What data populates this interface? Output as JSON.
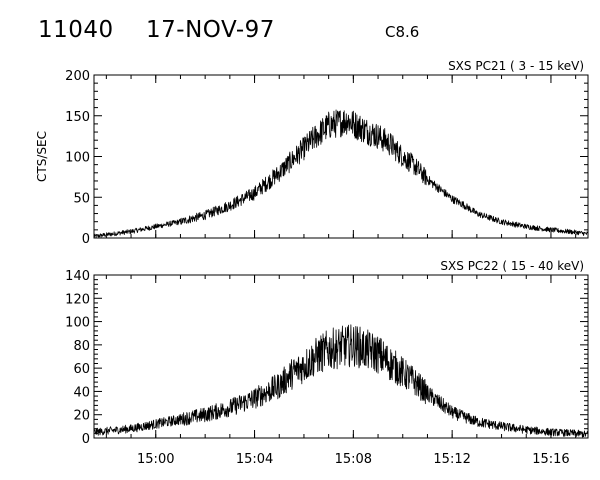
{
  "header": {
    "region_id": "11040",
    "date": "17-NOV-97",
    "flare_class": "C8.6"
  },
  "chart_data": [
    {
      "type": "line",
      "title": "SXS PC21  (  3 - 15 keV)",
      "ylabel": "CTS/SEC",
      "xlabel": "",
      "x_units": "UT",
      "xlim": [
        "14:57:30",
        "15:17:30"
      ],
      "ylim": [
        0,
        200
      ],
      "yticks": [
        0,
        50,
        100,
        150,
        200
      ],
      "xticks": [
        "15:00",
        "15:04",
        "15:08",
        "15:12",
        "15:16"
      ],
      "series": [
        {
          "time": [
            "14:57:30",
            "14:58:00",
            "14:59:00",
            "15:00:00",
            "15:01:00",
            "15:02:00",
            "15:03:00",
            "15:04:00",
            "15:05:00",
            "15:05:30",
            "15:06:00",
            "15:06:30",
            "15:07:00",
            "15:07:30",
            "15:07:45",
            "15:08:00",
            "15:08:30",
            "15:09:00",
            "15:09:30",
            "15:10:00",
            "15:10:30",
            "15:11:00",
            "15:11:30",
            "15:12:00",
            "15:12:30",
            "15:13:00",
            "15:14:00",
            "15:15:00",
            "15:16:00",
            "15:17:00",
            "15:17:30"
          ],
          "values": [
            2,
            4,
            8,
            14,
            20,
            28,
            40,
            55,
            80,
            95,
            110,
            125,
            138,
            142,
            145,
            140,
            132,
            125,
            115,
            100,
            88,
            72,
            60,
            48,
            40,
            30,
            20,
            14,
            10,
            7,
            5
          ]
        }
      ]
    },
    {
      "type": "line",
      "title": "SXS PC22  ( 15 - 40 keV)",
      "ylabel": "",
      "xlabel": "",
      "x_units": "UT",
      "xlim": [
        "14:57:30",
        "15:17:30"
      ],
      "ylim": [
        0,
        140
      ],
      "yticks": [
        0,
        20,
        40,
        60,
        80,
        100,
        120,
        140
      ],
      "xticks": [
        "15:00",
        "15:04",
        "15:08",
        "15:12",
        "15:16"
      ],
      "series": [
        {
          "time": [
            "14:57:30",
            "14:58:00",
            "14:59:00",
            "15:00:00",
            "15:01:00",
            "15:02:00",
            "15:03:00",
            "15:04:00",
            "15:05:00",
            "15:05:30",
            "15:06:00",
            "15:06:30",
            "15:07:00",
            "15:07:30",
            "15:08:00",
            "15:08:30",
            "15:09:00",
            "15:09:30",
            "15:10:00",
            "15:10:30",
            "15:11:00",
            "15:11:30",
            "15:12:00",
            "15:12:30",
            "15:13:00",
            "15:14:00",
            "15:15:00",
            "15:16:00",
            "15:17:00",
            "15:17:30"
          ],
          "values": [
            5,
            6,
            8,
            12,
            16,
            20,
            26,
            34,
            45,
            55,
            62,
            70,
            76,
            78,
            80,
            76,
            72,
            64,
            56,
            48,
            38,
            30,
            22,
            18,
            14,
            10,
            7,
            5,
            4,
            3
          ]
        }
      ]
    }
  ]
}
